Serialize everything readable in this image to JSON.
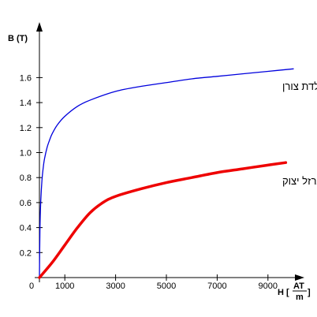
{
  "chart_data": {
    "type": "line",
    "title": "",
    "xlabel": "H",
    "xunit_num": "AT",
    "xunit_den": "m",
    "ylabel": "B (T)",
    "xlim": [
      0,
      10000
    ],
    "ylim": [
      0,
      1.8
    ],
    "xticks": [
      1000,
      3000,
      5000,
      7000,
      9000
    ],
    "yticks": [
      0.2,
      0.4,
      0.6,
      0.8,
      1.0,
      1.2,
      1.4,
      1.6
    ],
    "ytick_labels": [
      "0.2",
      "0.4",
      "0.6",
      "0.8",
      "1.0",
      "1.2",
      "1.4",
      "1.6"
    ],
    "origin_label": "0",
    "grid": false,
    "series": [
      {
        "name": "פלדת צורן",
        "color": "#0000dd",
        "x": [
          0,
          20,
          50,
          100,
          150,
          200,
          300,
          400,
          500,
          700,
          1000,
          1500,
          2000,
          3000,
          4000,
          5000,
          6000,
          7000,
          8000,
          9000,
          10000
        ],
        "y": [
          0,
          0.38,
          0.6,
          0.78,
          0.88,
          0.95,
          1.04,
          1.1,
          1.15,
          1.22,
          1.29,
          1.37,
          1.42,
          1.49,
          1.53,
          1.56,
          1.59,
          1.61,
          1.63,
          1.65,
          1.67
        ]
      },
      {
        "name": "ברזל יצוק",
        "color": "#ee0000",
        "x": [
          0,
          500,
          1000,
          1500,
          2000,
          2500,
          3000,
          4000,
          5000,
          6000,
          7000,
          8000,
          9000,
          9700
        ],
        "y": [
          0,
          0.12,
          0.26,
          0.4,
          0.52,
          0.6,
          0.65,
          0.71,
          0.76,
          0.8,
          0.84,
          0.87,
          0.9,
          0.92
        ]
      }
    ]
  }
}
